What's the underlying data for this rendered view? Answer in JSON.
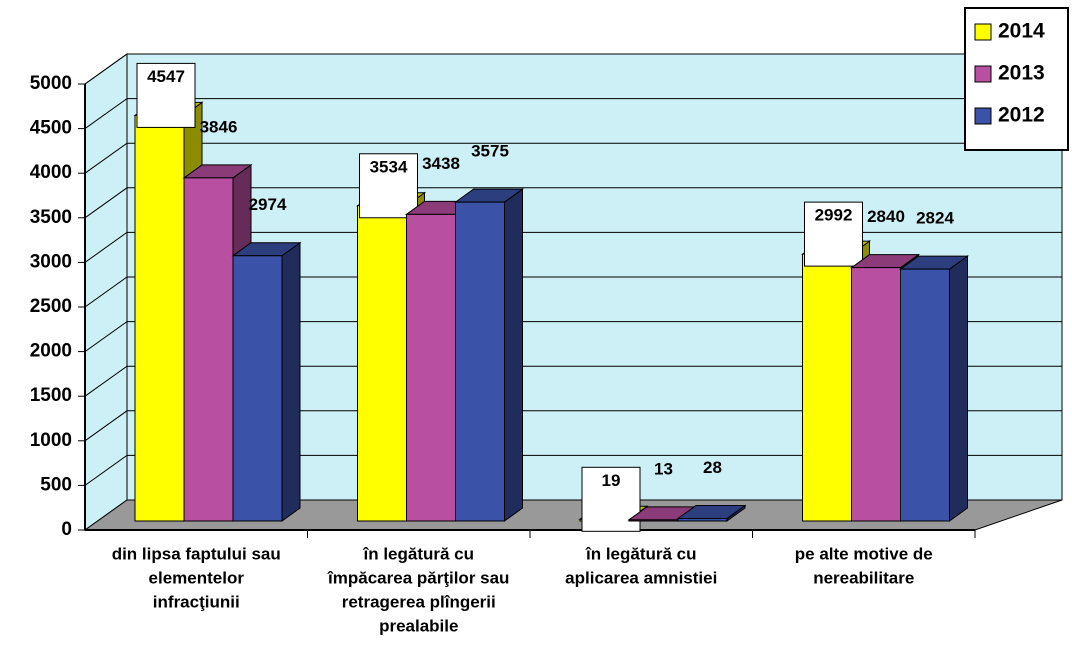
{
  "chart_data": {
    "type": "bar3d",
    "categories": [
      [
        "din lipsa faptului sau",
        "elementelor",
        "infracţiunii"
      ],
      [
        "în legătură cu",
        "împăcarea părţilor sau",
        "retragerea plîngerii",
        "prealabile"
      ],
      [
        "în legătură cu",
        "aplicarea amnistiei"
      ],
      [
        "pe alte motive de",
        "nereabilitare"
      ]
    ],
    "series": [
      {
        "name": "2014",
        "color": "#ffff00",
        "values": [
          4547,
          3534,
          19,
          2992
        ]
      },
      {
        "name": "2013",
        "color": "#b94fa0",
        "values": [
          3846,
          3438,
          13,
          2840
        ]
      },
      {
        "name": "2012",
        "color": "#3a52a8",
        "values": [
          2974,
          3575,
          28,
          2824
        ]
      }
    ],
    "ylim": [
      0,
      5000
    ],
    "yticks": [
      0,
      500,
      1000,
      1500,
      2000,
      2500,
      3000,
      3500,
      4000,
      4500,
      5000
    ],
    "grid": true,
    "legend": "top-right"
  }
}
